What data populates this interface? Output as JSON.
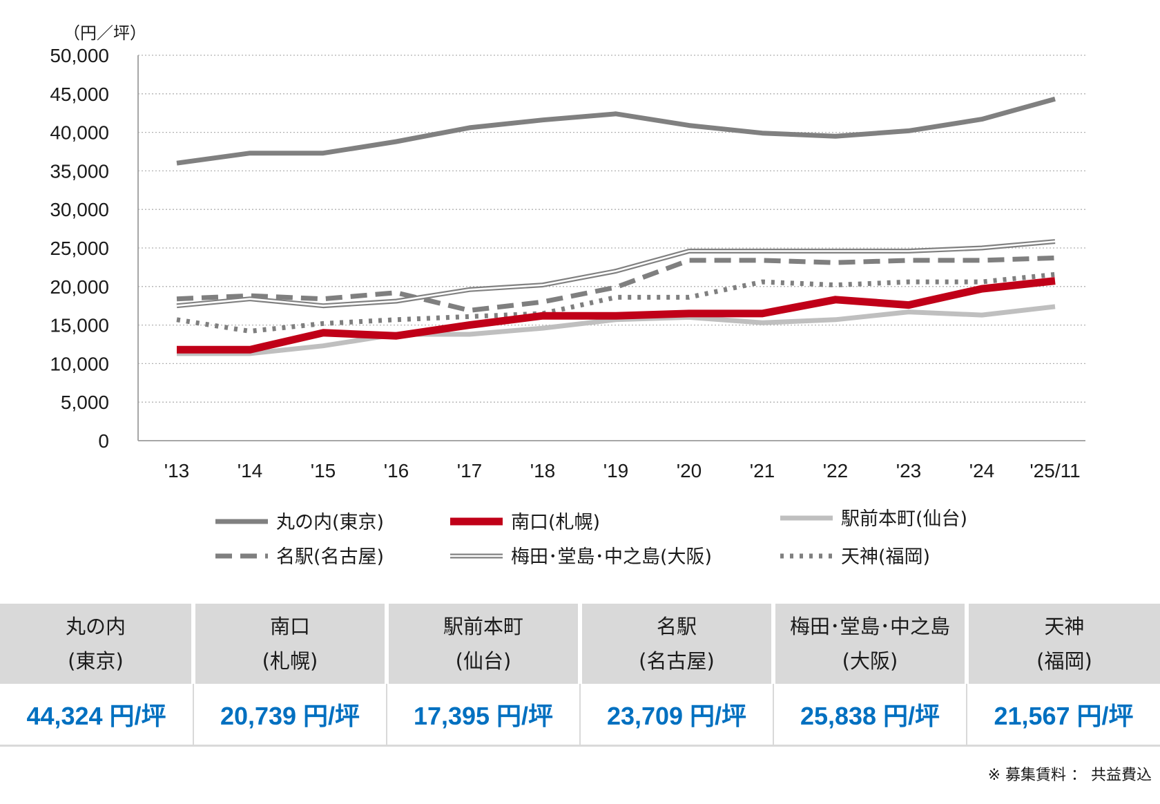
{
  "chart_data": {
    "type": "line",
    "unit_label": "（円／坪）",
    "categories": [
      "'13",
      "'14",
      "'15",
      "'16",
      "'17",
      "'18",
      "'19",
      "'20",
      "'21",
      "'22",
      "'23",
      "'24",
      "'25/11"
    ],
    "ylim": [
      0,
      50000
    ],
    "yticks": [
      "0",
      "5,000",
      "10,000",
      "15,000",
      "20,000",
      "25,000",
      "30,000",
      "35,000",
      "40,000",
      "45,000",
      "50,000"
    ],
    "grid": true,
    "legend_position": "bottom",
    "series": [
      {
        "name": "丸の内(東京)",
        "style": "thick",
        "color": "#808080",
        "values": [
          36000,
          37300,
          37300,
          38800,
          40600,
          41600,
          42400,
          40900,
          39900,
          39500,
          40200,
          41700,
          44324
        ]
      },
      {
        "name": "南口(札幌)",
        "style": "bold",
        "color": "#c00018",
        "values": [
          11800,
          11800,
          14000,
          13600,
          15000,
          16200,
          16200,
          16500,
          16500,
          18300,
          17600,
          19700,
          20739
        ]
      },
      {
        "name": "駅前本町(仙台)",
        "style": "light",
        "color": "#bfbfbf",
        "values": [
          11300,
          11300,
          12300,
          13800,
          13800,
          14600,
          15700,
          16000,
          15300,
          15700,
          16700,
          16300,
          17395
        ]
      },
      {
        "name": "名駅(名古屋)",
        "style": "dashed",
        "color": "#7f7f7f",
        "values": [
          18400,
          18800,
          18400,
          19200,
          16900,
          18000,
          19900,
          23400,
          23400,
          23100,
          23400,
          23400,
          23709
        ]
      },
      {
        "name": "梅田･堂島･中之島(大阪)",
        "style": "double",
        "color": "#808080",
        "values": [
          17500,
          18400,
          17500,
          18100,
          19600,
          20200,
          22000,
          24600,
          24600,
          24600,
          24600,
          25000,
          25838
        ]
      },
      {
        "name": "天神(福岡)",
        "style": "dotted",
        "color": "#7f7f7f",
        "values": [
          15700,
          14200,
          15200,
          15700,
          16100,
          16500,
          18600,
          18600,
          20600,
          20200,
          20600,
          20600,
          21567
        ]
      }
    ]
  },
  "summary": [
    {
      "name": "丸の内",
      "region": "(東京)",
      "value": "44,324 円/坪"
    },
    {
      "name": "南口",
      "region": "(札幌)",
      "value": "20,739 円/坪"
    },
    {
      "name": "駅前本町",
      "region": "(仙台)",
      "value": "17,395 円/坪"
    },
    {
      "name": "名駅",
      "region": "(名古屋)",
      "value": "23,709 円/坪"
    },
    {
      "name": "梅田･堂島･中之島",
      "region": "(大阪)",
      "value": "25,838 円/坪"
    },
    {
      "name": "天神",
      "region": "(福岡)",
      "value": "21,567 円/坪"
    }
  ],
  "note": "※ 募集賃料 ： 共益費込"
}
